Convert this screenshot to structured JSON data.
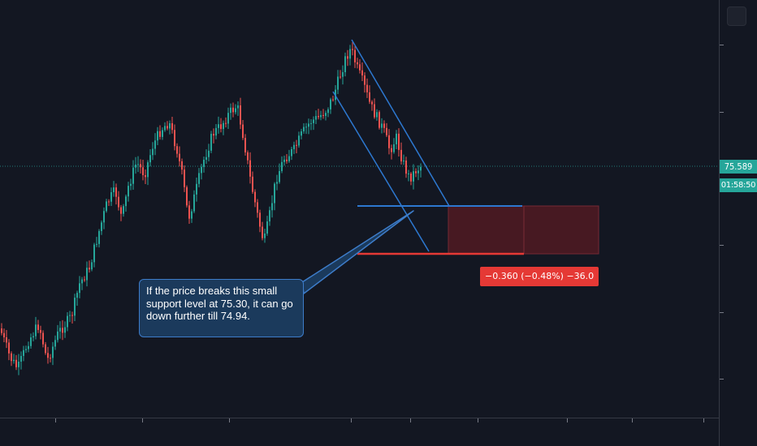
{
  "chart": {
    "last_price": "75.589",
    "countdown": "01:58:50",
    "up_color": "#26a69a",
    "down_color": "#ef5350",
    "trendline_color": "#2d78d0",
    "support_line_color": "#2d78d0",
    "target_line_color": "#e53935",
    "short_zone_color": "#4a1a22"
  },
  "measure": {
    "label": "−0.360 (−0.48%) −36.0"
  },
  "callout": {
    "text": "If the price breaks this small support level at 75.30, it can go down further till 74.94."
  },
  "chart_data": {
    "type": "candlestick",
    "annotations": [
      {
        "kind": "note",
        "text": "If the price breaks this small support level at 75.30, it can go down further till 74.94."
      },
      {
        "kind": "level",
        "name": "support",
        "value": 75.3
      },
      {
        "kind": "level",
        "name": "target",
        "value": 74.94
      },
      {
        "kind": "measure",
        "text": "−0.360 (−0.48%) −36.0"
      }
    ],
    "last_price": 75.589
  }
}
